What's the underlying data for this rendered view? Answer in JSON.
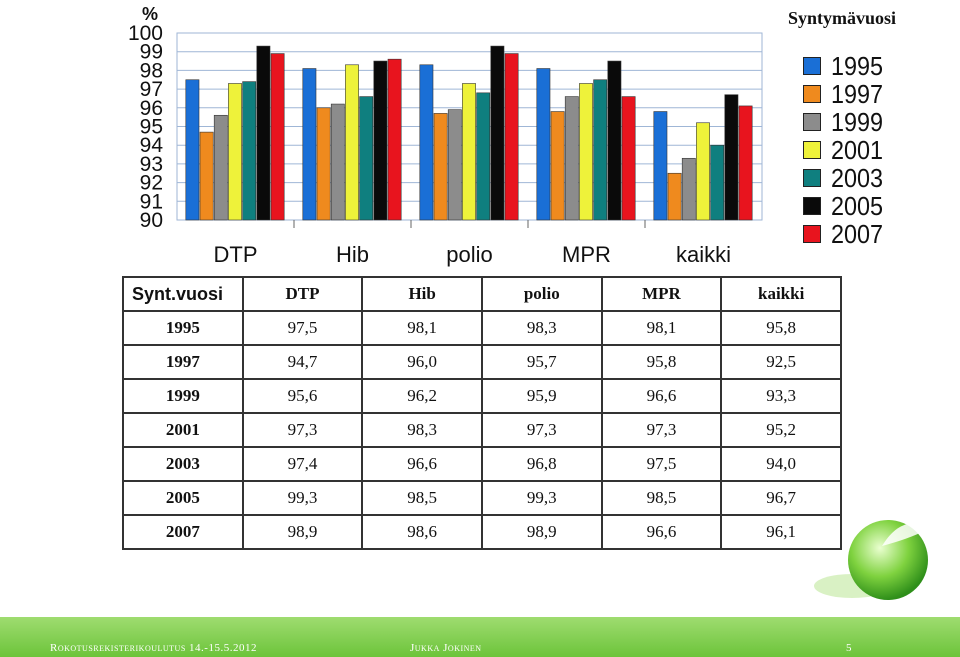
{
  "chart_data": {
    "type": "bar",
    "ylabel": "%",
    "ylim": [
      90,
      100
    ],
    "yticks": [
      "100",
      "99",
      "98",
      "97",
      "96",
      "95",
      "94",
      "93",
      "92",
      "91",
      "90"
    ],
    "categories": [
      "DTP",
      "Hib",
      "polio",
      "MPR",
      "kaikki"
    ],
    "grid": true,
    "legend_position": "right",
    "legend_title": "Syntymävuosi",
    "series": [
      {
        "name": "1995",
        "color": "#1a6fd6",
        "values": [
          97.5,
          98.1,
          98.3,
          98.1,
          95.8
        ]
      },
      {
        "name": "1997",
        "color": "#ef8a1e",
        "values": [
          94.7,
          96.0,
          95.7,
          95.8,
          92.5
        ]
      },
      {
        "name": "1999",
        "color": "#8c8c8c",
        "values": [
          95.6,
          96.2,
          95.9,
          96.6,
          93.3
        ]
      },
      {
        "name": "2001",
        "color": "#eef23a",
        "values": [
          97.3,
          98.3,
          97.3,
          97.3,
          95.2
        ]
      },
      {
        "name": "2003",
        "color": "#0f7f7f",
        "values": [
          97.4,
          96.6,
          96.8,
          97.5,
          94.0
        ]
      },
      {
        "name": "2005",
        "color": "#0a0a0a",
        "values": [
          99.3,
          98.5,
          99.3,
          98.5,
          96.7
        ]
      },
      {
        "name": "2007",
        "color": "#e8141e",
        "values": [
          98.9,
          98.6,
          98.9,
          96.6,
          96.1
        ]
      }
    ]
  },
  "table": {
    "header": [
      "Synt.vuosi",
      "DTP",
      "Hib",
      "polio",
      "MPR",
      "kaikki"
    ],
    "rows": [
      [
        "1995",
        "97,5",
        "98,1",
        "98,3",
        "98,1",
        "95,8"
      ],
      [
        "1997",
        "94,7",
        "96,0",
        "95,7",
        "95,8",
        "92,5"
      ],
      [
        "1999",
        "95,6",
        "96,2",
        "95,9",
        "96,6",
        "93,3"
      ],
      [
        "2001",
        "97,3",
        "98,3",
        "97,3",
        "97,3",
        "95,2"
      ],
      [
        "2003",
        "97,4",
        "96,6",
        "96,8",
        "97,5",
        "94,0"
      ],
      [
        "2005",
        "99,3",
        "98,5",
        "99,3",
        "98,5",
        "96,7"
      ],
      [
        "2007",
        "98,9",
        "98,6",
        "98,9",
        "96,6",
        "96,1"
      ]
    ]
  },
  "footer": {
    "left": "Rokotusrekisterikoulutus 14.-15.5.2012",
    "center": "Jukka Jokinen",
    "page": "5"
  },
  "colors": {
    "footer_bar": "#7fcf4a",
    "grid": "#9fb6d6"
  }
}
